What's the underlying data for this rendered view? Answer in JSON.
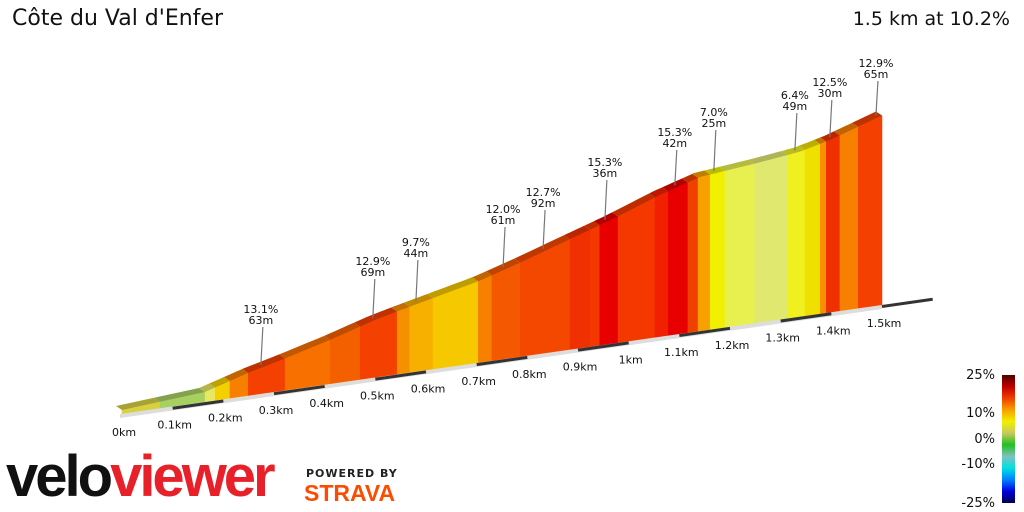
{
  "header": {
    "title": "Côte du Val d'Enfer",
    "summary": "1.5 km at 10.2%"
  },
  "chart_data": {
    "type": "area",
    "title": "Côte du Val d'Enfer",
    "xlabel": "",
    "ylabel": "",
    "xlim": [
      0,
      1.5
    ],
    "x_ticks": [
      "0km",
      "0.1km",
      "0.2km",
      "0.3km",
      "0.4km",
      "0.5km",
      "0.6km",
      "0.7km",
      "0.8km",
      "0.9km",
      "1km",
      "1.1km",
      "1.2km",
      "1.3km",
      "1.4km",
      "1.5km"
    ],
    "elevation_profile": {
      "km": [
        0,
        0.164,
        0.253,
        0.312,
        0.411,
        0.499,
        0.549,
        0.707,
        0.786,
        0.963,
        1.062,
        1.141,
        1.259,
        1.338,
        1.397,
        1.5
      ],
      "elev_m": [
        0,
        5,
        16,
        22,
        33,
        44,
        49,
        64,
        74,
        98,
        113,
        123,
        128,
        132,
        138,
        152
      ]
    },
    "segments": [
      {
        "start": 0,
        "end": 0.075,
        "color": "#d8d040"
      },
      {
        "start": 0.075,
        "end": 0.164,
        "color": "#a8d060"
      },
      {
        "start": 0.164,
        "end": 0.184,
        "color": "#e8e860"
      },
      {
        "start": 0.184,
        "end": 0.213,
        "color": "#f5d000"
      },
      {
        "start": 0.213,
        "end": 0.249,
        "color": "#f78000"
      },
      {
        "start": 0.249,
        "end": 0.322,
        "color": "#f44000"
      },
      {
        "start": 0.322,
        "end": 0.411,
        "color": "#f77000"
      },
      {
        "start": 0.411,
        "end": 0.47,
        "color": "#f46000"
      },
      {
        "start": 0.47,
        "end": 0.543,
        "color": "#f44000"
      },
      {
        "start": 0.543,
        "end": 0.568,
        "color": "#f79000"
      },
      {
        "start": 0.568,
        "end": 0.614,
        "color": "#f8b000"
      },
      {
        "start": 0.614,
        "end": 0.703,
        "color": "#f5c800"
      },
      {
        "start": 0.703,
        "end": 0.73,
        "color": "#f78000"
      },
      {
        "start": 0.73,
        "end": 0.786,
        "color": "#f45800"
      },
      {
        "start": 0.786,
        "end": 0.884,
        "color": "#f44800"
      },
      {
        "start": 0.884,
        "end": 0.924,
        "color": "#f03000"
      },
      {
        "start": 0.924,
        "end": 0.943,
        "color": "#f43800"
      },
      {
        "start": 0.943,
        "end": 0.979,
        "color": "#e80000"
      },
      {
        "start": 0.979,
        "end": 1.052,
        "color": "#f43800"
      },
      {
        "start": 1.052,
        "end": 1.078,
        "color": "#f02000"
      },
      {
        "start": 1.078,
        "end": 1.117,
        "color": "#e80000"
      },
      {
        "start": 1.117,
        "end": 1.137,
        "color": "#f04000"
      },
      {
        "start": 1.137,
        "end": 1.161,
        "color": "#f8a000"
      },
      {
        "start": 1.161,
        "end": 1.19,
        "color": "#f0f000"
      },
      {
        "start": 1.19,
        "end": 1.249,
        "color": "#e8f050"
      },
      {
        "start": 1.249,
        "end": 1.314,
        "color": "#e0e870"
      },
      {
        "start": 1.314,
        "end": 1.348,
        "color": "#f0f020"
      },
      {
        "start": 1.348,
        "end": 1.378,
        "color": "#f0e000"
      },
      {
        "start": 1.378,
        "end": 1.39,
        "color": "#f89000"
      },
      {
        "start": 1.39,
        "end": 1.417,
        "color": "#f03000"
      },
      {
        "start": 1.417,
        "end": 1.453,
        "color": "#f88000"
      },
      {
        "start": 1.453,
        "end": 1.5,
        "color": "#f44000"
      }
    ],
    "annotations": [
      {
        "km": 0.278,
        "grade": "13.1%",
        "length": "63m"
      },
      {
        "km": 0.499,
        "grade": "12.9%",
        "length": "69m"
      },
      {
        "km": 0.584,
        "grade": "9.7%",
        "length": "44m"
      },
      {
        "km": 0.756,
        "grade": "12.0%",
        "length": "61m"
      },
      {
        "km": 0.835,
        "grade": "12.7%",
        "length": "92m"
      },
      {
        "km": 0.957,
        "grade": "15.3%",
        "length": "36m"
      },
      {
        "km": 1.095,
        "grade": "15.3%",
        "length": "42m"
      },
      {
        "km": 1.172,
        "grade": "7.0%",
        "length": "25m"
      },
      {
        "km": 1.332,
        "grade": "6.4%",
        "length": "49m"
      },
      {
        "km": 1.401,
        "grade": "12.5%",
        "length": "30m"
      },
      {
        "km": 1.492,
        "grade": "12.9%",
        "length": "65m"
      }
    ],
    "legend": {
      "placement": "bottom-right",
      "labels": [
        "25%",
        "10%",
        "0%",
        "-10%",
        "-25%"
      ],
      "stops": [
        "#500000",
        "#c00000",
        "#f04000",
        "#f8a000",
        "#f0f000",
        "#c8c860",
        "#20c020",
        "#80c0c0",
        "#00e0e0",
        "#0080ff",
        "#0000e0",
        "#000050"
      ]
    }
  },
  "branding": {
    "logo_part1": "velo",
    "logo_part2": "viewer",
    "powered_by": "POWERED BY",
    "strava": "STRAVA",
    "strava_color": "#fc4c02",
    "viewer_color": "#e8202a"
  }
}
